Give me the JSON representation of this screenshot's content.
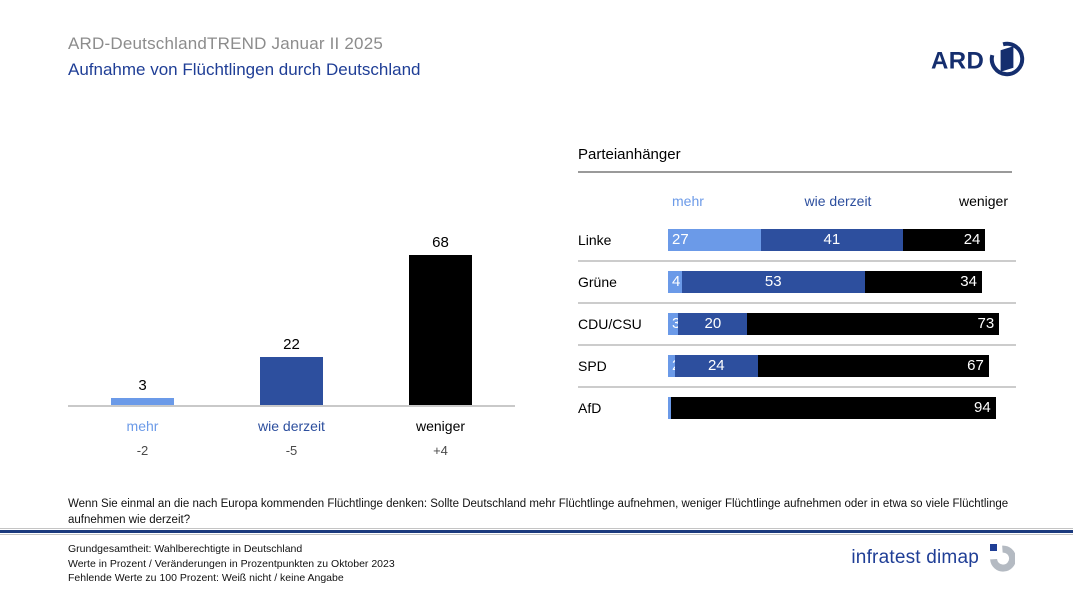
{
  "header": {
    "title": "ARD-DeutschlandTREND Januar II 2025",
    "subtitle": "Aufnahme von Flüchtlingen durch Deutschland"
  },
  "logos": {
    "ard": "ARD",
    "agency": "infratest dimap"
  },
  "colors": {
    "light_blue": "#6b9ae8",
    "dark_blue": "#2d4f9e",
    "black": "#000000",
    "navy": "#1f3e96",
    "title_gray": "#8c8c8c"
  },
  "chart_data": [
    {
      "type": "bar",
      "categories": [
        "mehr",
        "wie derzeit",
        "weniger"
      ],
      "values": [
        3,
        22,
        68
      ],
      "changes": [
        "-2",
        "-5",
        "+4"
      ],
      "bar_colors": [
        "#6b9ae8",
        "#2d4f9e",
        "#000000"
      ],
      "label_colors": [
        "#6b9ae8",
        "#2d4f9e",
        "#000000"
      ],
      "unit": "percent",
      "ylim": [
        0,
        100
      ]
    },
    {
      "type": "bar",
      "subtype": "stacked-horizontal",
      "title": "Parteianhänger",
      "column_headers": [
        "mehr",
        "wie derzeit",
        "weniger"
      ],
      "header_colors": [
        "#6b9ae8",
        "#2d4f9e",
        "#000000"
      ],
      "categories": [
        "Linke",
        "Grüne",
        "CDU/CSU",
        "SPD",
        "AfD"
      ],
      "series": [
        {
          "name": "mehr",
          "color": "#6b9ae8",
          "values": [
            27,
            4,
            3,
            2,
            1
          ]
        },
        {
          "name": "wie derzeit",
          "color": "#2d4f9e",
          "values": [
            41,
            53,
            20,
            24,
            null
          ]
        },
        {
          "name": "weniger",
          "color": "#000000",
          "values": [
            24,
            34,
            73,
            67,
            94
          ]
        }
      ],
      "unit": "percent"
    }
  ],
  "question": "Wenn Sie einmal an die nach Europa kommenden Flüchtlinge denken: Sollte Deutschland mehr Flüchtlinge aufnehmen, weniger Flüchtlinge aufnehmen oder in etwa so viele Flüchtlinge aufnehmen wie derzeit?",
  "footer": {
    "lines": [
      "Grundgesamtheit: Wahlberechtigte in Deutschland",
      "Werte in Prozent / Veränderungen in Prozentpunkten zu Oktober 2023",
      "Fehlende Werte zu 100 Prozent: Weiß nicht / keine Angabe"
    ]
  }
}
